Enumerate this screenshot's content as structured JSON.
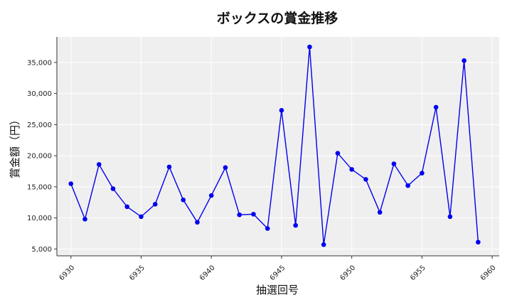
{
  "chart_data": {
    "type": "line",
    "title": "ボックスの賞金推移",
    "xlabel": "抽選回号",
    "ylabel": "賞金額（円）",
    "x_ticks": [
      6930,
      6935,
      6940,
      6945,
      6950,
      6955,
      6960
    ],
    "y_ticks": [
      5000,
      10000,
      15000,
      20000,
      25000,
      30000,
      35000
    ],
    "y_tick_labels": [
      "5,000",
      "10,000",
      "15,000",
      "20,000",
      "25,000",
      "30,000",
      "35,000"
    ],
    "xlim": [
      6929.0,
      6960.5
    ],
    "ylim": [
      3900,
      39100
    ],
    "grid": true,
    "series": [
      {
        "color": "#0000ee",
        "points": [
          [
            6930,
            15500
          ],
          [
            6931,
            9800
          ],
          [
            6932,
            18600
          ],
          [
            6933,
            14700
          ],
          [
            6934,
            11800
          ],
          [
            6935,
            10200
          ],
          [
            6936,
            12200
          ],
          [
            6937,
            18200
          ],
          [
            6938,
            12900
          ],
          [
            6939,
            9300
          ],
          [
            6940,
            13600
          ],
          [
            6941,
            18100
          ],
          [
            6942,
            10500
          ],
          [
            6943,
            10600
          ],
          [
            6944,
            8300
          ],
          [
            6945,
            27300
          ],
          [
            6946,
            8800
          ],
          [
            6947,
            37500
          ],
          [
            6948,
            5700
          ],
          [
            6949,
            20400
          ],
          [
            6950,
            17800
          ],
          [
            6951,
            16200
          ],
          [
            6952,
            10900
          ],
          [
            6953,
            18700
          ],
          [
            6954,
            15200
          ],
          [
            6955,
            17200
          ],
          [
            6956,
            27800
          ],
          [
            6957,
            10200
          ],
          [
            6958,
            35300
          ],
          [
            6959,
            6100
          ]
        ]
      }
    ]
  }
}
